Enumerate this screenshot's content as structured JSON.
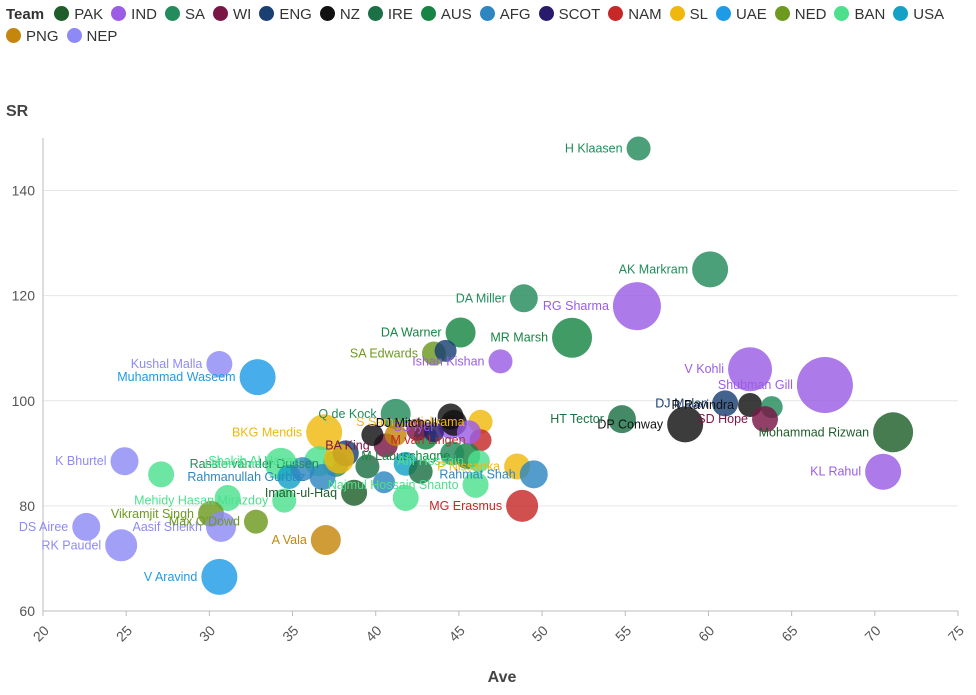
{
  "chart_data": {
    "type": "scatter",
    "xlabel": "Ave",
    "ylabel": "SR",
    "xlim": [
      20,
      75
    ],
    "ylim": [
      60,
      150
    ],
    "x_ticks": [
      20,
      25,
      30,
      35,
      40,
      45,
      50,
      55,
      60,
      65,
      70,
      75
    ],
    "y_ticks": [
      60,
      80,
      100,
      120,
      140
    ],
    "legend_title": "Team",
    "teams": [
      {
        "name": "PAK",
        "color": "#1f5e2a"
      },
      {
        "name": "IND",
        "color": "#9b5de5"
      },
      {
        "name": "SA",
        "color": "#238b5c"
      },
      {
        "name": "WI",
        "color": "#7a1646"
      },
      {
        "name": "ENG",
        "color": "#1a3f73"
      },
      {
        "name": "NZ",
        "color": "#111111"
      },
      {
        "name": "IRE",
        "color": "#1c7045"
      },
      {
        "name": "AUS",
        "color": "#168543"
      },
      {
        "name": "AFG",
        "color": "#2e86c1"
      },
      {
        "name": "SCOT",
        "color": "#2a1a6e"
      },
      {
        "name": "NAM",
        "color": "#c62828"
      },
      {
        "name": "SL",
        "color": "#f0b80c"
      },
      {
        "name": "UAE",
        "color": "#1e9be6"
      },
      {
        "name": "NED",
        "color": "#6d9a1e"
      },
      {
        "name": "BAN",
        "color": "#4ce08d"
      },
      {
        "name": "USA",
        "color": "#13a2c6"
      },
      {
        "name": "PNG",
        "color": "#c4860c"
      },
      {
        "name": "NEP",
        "color": "#8e8af5"
      }
    ],
    "points": [
      {
        "label": "H Klaasen",
        "team": "SA",
        "x": 55.8,
        "y": 148,
        "size": 12
      },
      {
        "label": "AK Markram",
        "team": "SA",
        "x": 60.1,
        "y": 125,
        "size": 18
      },
      {
        "label": "RG Sharma",
        "team": "IND",
        "x": 55.7,
        "y": 118,
        "size": 24
      },
      {
        "label": "DA Miller",
        "team": "SA",
        "x": 48.9,
        "y": 119.5,
        "size": 14
      },
      {
        "label": "MR Marsh",
        "team": "AUS",
        "x": 51.8,
        "y": 112,
        "size": 20
      },
      {
        "label": "DA Warner",
        "team": "AUS",
        "x": 45.1,
        "y": 113,
        "size": 15
      },
      {
        "label": "SA Edwards",
        "team": "NED",
        "x": 43.5,
        "y": 109,
        "size": 12
      },
      {
        "label": "Ishan Kishan",
        "team": "IND",
        "x": 47.5,
        "y": 107.5,
        "size": 12
      },
      {
        "label": "",
        "team": "ENG",
        "x": 44.2,
        "y": 109.5,
        "size": 11
      },
      {
        "label": "Kushal Malla",
        "team": "NEP",
        "x": 30.6,
        "y": 107,
        "size": 13
      },
      {
        "label": "Muhammad Waseem",
        "team": "UAE",
        "x": 32.9,
        "y": 104.5,
        "size": 18
      },
      {
        "label": "V Kohli",
        "team": "IND",
        "x": 62.5,
        "y": 106,
        "size": 22
      },
      {
        "label": "Shubman Gill",
        "team": "IND",
        "x": 67.0,
        "y": 103,
        "size": 28
      },
      {
        "label": "DJ Malan",
        "team": "ENG",
        "x": 61.0,
        "y": 99.5,
        "size": 13
      },
      {
        "label": "R Ravindra",
        "team": "NZ",
        "x": 62.5,
        "y": 99.2,
        "size": 12
      },
      {
        "label": "",
        "team": "SA",
        "x": 63.8,
        "y": 98.8,
        "size": 11
      },
      {
        "label": "SD Hope",
        "team": "WI",
        "x": 63.4,
        "y": 96.5,
        "size": 13
      },
      {
        "label": "DP Conway",
        "team": "NZ",
        "x": 58.6,
        "y": 95.5,
        "size": 18
      },
      {
        "label": "HT Tector",
        "team": "IRE",
        "x": 54.8,
        "y": 96.5,
        "size": 14
      },
      {
        "label": "Mohammad Rizwan",
        "team": "PAK",
        "x": 71.1,
        "y": 94,
        "size": 20
      },
      {
        "label": "KL Rahul",
        "team": "IND",
        "x": 70.5,
        "y": 86.5,
        "size": 18
      },
      {
        "label": "Q de Kock",
        "team": "SA",
        "x": 41.2,
        "y": 97.5,
        "size": 15
      },
      {
        "label": "S Samarawickrama",
        "team": "SL",
        "x": 46.3,
        "y": 96,
        "size": 12
      },
      {
        "label": "SS Iyer",
        "team": "IND",
        "x": 44.5,
        "y": 95,
        "size": 12
      },
      {
        "label": "DJ Mitchell",
        "team": "NZ",
        "x": 44.7,
        "y": 95.8,
        "size": 13
      },
      {
        "label": "BKG Mendis",
        "team": "SL",
        "x": 36.9,
        "y": 94,
        "size": 18
      },
      {
        "label": "BA King",
        "team": "WI",
        "x": 40.6,
        "y": 91.5,
        "size": 12
      },
      {
        "label": "M van Lingen",
        "team": "NAM",
        "x": 46.3,
        "y": 92.5,
        "size": 11
      },
      {
        "label": "Rassie van der Dussen",
        "team": "SA",
        "x": 37.6,
        "y": 88,
        "size": 13
      },
      {
        "label": "Shakib Al Hasan",
        "team": "BAN",
        "x": 36.6,
        "y": 88.5,
        "size": 15
      },
      {
        "label": "M Labuschagne",
        "team": "AUS",
        "x": 45.5,
        "y": 89.5,
        "size": 13
      },
      {
        "label": "Afif Hossain",
        "team": "BAN",
        "x": 46.2,
        "y": 88.5,
        "size": 11
      },
      {
        "label": "P Nissanka",
        "team": "SL",
        "x": 48.5,
        "y": 87.5,
        "size": 13
      },
      {
        "label": "Rahmat Shah",
        "team": "AFG",
        "x": 49.5,
        "y": 86,
        "size": 14
      },
      {
        "label": "Rahmanullah Gurbaz",
        "team": "AFG",
        "x": 36.8,
        "y": 85.5,
        "size": 13
      },
      {
        "label": "Najmul Hossain Shanto",
        "team": "BAN",
        "x": 46.0,
        "y": 84,
        "size": 13
      },
      {
        "label": "Imam-ul-Haq",
        "team": "PAK",
        "x": 38.7,
        "y": 82.5,
        "size": 13
      },
      {
        "label": "Mehidy Hasan Mirazdoy",
        "team": "BAN",
        "x": 34.5,
        "y": 81,
        "size": 12
      },
      {
        "label": "MG Erasmus",
        "team": "NAM",
        "x": 48.8,
        "y": 80,
        "size": 16
      },
      {
        "label": "Litton Das",
        "team": "BAN",
        "x": 34.3,
        "y": 88,
        "size": 16
      },
      {
        "label": "K Bhurtel",
        "team": "NEP",
        "x": 24.9,
        "y": 88.5,
        "size": 14
      },
      {
        "label": "",
        "team": "BAN",
        "x": 27.1,
        "y": 86,
        "size": 13
      },
      {
        "label": "",
        "team": "BAN",
        "x": 31.1,
        "y": 81.5,
        "size": 13
      },
      {
        "label": "Vikramjit Singh",
        "team": "NED",
        "x": 30.1,
        "y": 78.5,
        "size": 13
      },
      {
        "label": "Aasif Sheikh",
        "team": "NEP",
        "x": 30.7,
        "y": 76,
        "size": 15
      },
      {
        "label": "Max O'Dowd",
        "team": "NED",
        "x": 32.8,
        "y": 77,
        "size": 12
      },
      {
        "label": "DS Airee",
        "team": "NEP",
        "x": 22.6,
        "y": 76,
        "size": 14
      },
      {
        "label": "RK Paudel",
        "team": "NEP",
        "x": 24.7,
        "y": 72.5,
        "size": 16
      },
      {
        "label": "A Vala",
        "team": "PNG",
        "x": 37.0,
        "y": 73.5,
        "size": 15
      },
      {
        "label": "V Aravind",
        "team": "UAE",
        "x": 30.6,
        "y": 66.5,
        "size": 18
      },
      {
        "label": "",
        "team": "ENG",
        "x": 38.2,
        "y": 90,
        "size": 13
      },
      {
        "label": "",
        "team": "SL",
        "x": 37.8,
        "y": 89,
        "size": 15
      },
      {
        "label": "",
        "team": "IRE",
        "x": 39.5,
        "y": 87.5,
        "size": 12
      },
      {
        "label": "",
        "team": "USA",
        "x": 41.8,
        "y": 88,
        "size": 12
      },
      {
        "label": "",
        "team": "IRE",
        "x": 42.7,
        "y": 86.5,
        "size": 12
      },
      {
        "label": "",
        "team": "AFG",
        "x": 40.5,
        "y": 84.5,
        "size": 11
      },
      {
        "label": "",
        "team": "BAN",
        "x": 41.8,
        "y": 81.5,
        "size": 13
      },
      {
        "label": "",
        "team": "AUS",
        "x": 43.0,
        "y": 93,
        "size": 12
      },
      {
        "label": "",
        "team": "SA",
        "x": 44.6,
        "y": 90,
        "size": 12
      },
      {
        "label": "",
        "team": "WI",
        "x": 42.5,
        "y": 94.5,
        "size": 11
      },
      {
        "label": "",
        "team": "NZ",
        "x": 39.8,
        "y": 93.5,
        "size": 11
      },
      {
        "label": "",
        "team": "SCOT",
        "x": 43.5,
        "y": 94,
        "size": 10
      },
      {
        "label": "",
        "team": "NZ",
        "x": 44.5,
        "y": 97,
        "size": 13
      },
      {
        "label": "",
        "team": "USA",
        "x": 34.8,
        "y": 85.5,
        "size": 12
      },
      {
        "label": "",
        "team": "AFG",
        "x": 35.6,
        "y": 87,
        "size": 12
      },
      {
        "label": "",
        "team": "PNG",
        "x": 41.2,
        "y": 93.5,
        "size": 11
      },
      {
        "label": "",
        "team": "IND",
        "x": 45.6,
        "y": 94,
        "size": 12
      }
    ]
  }
}
